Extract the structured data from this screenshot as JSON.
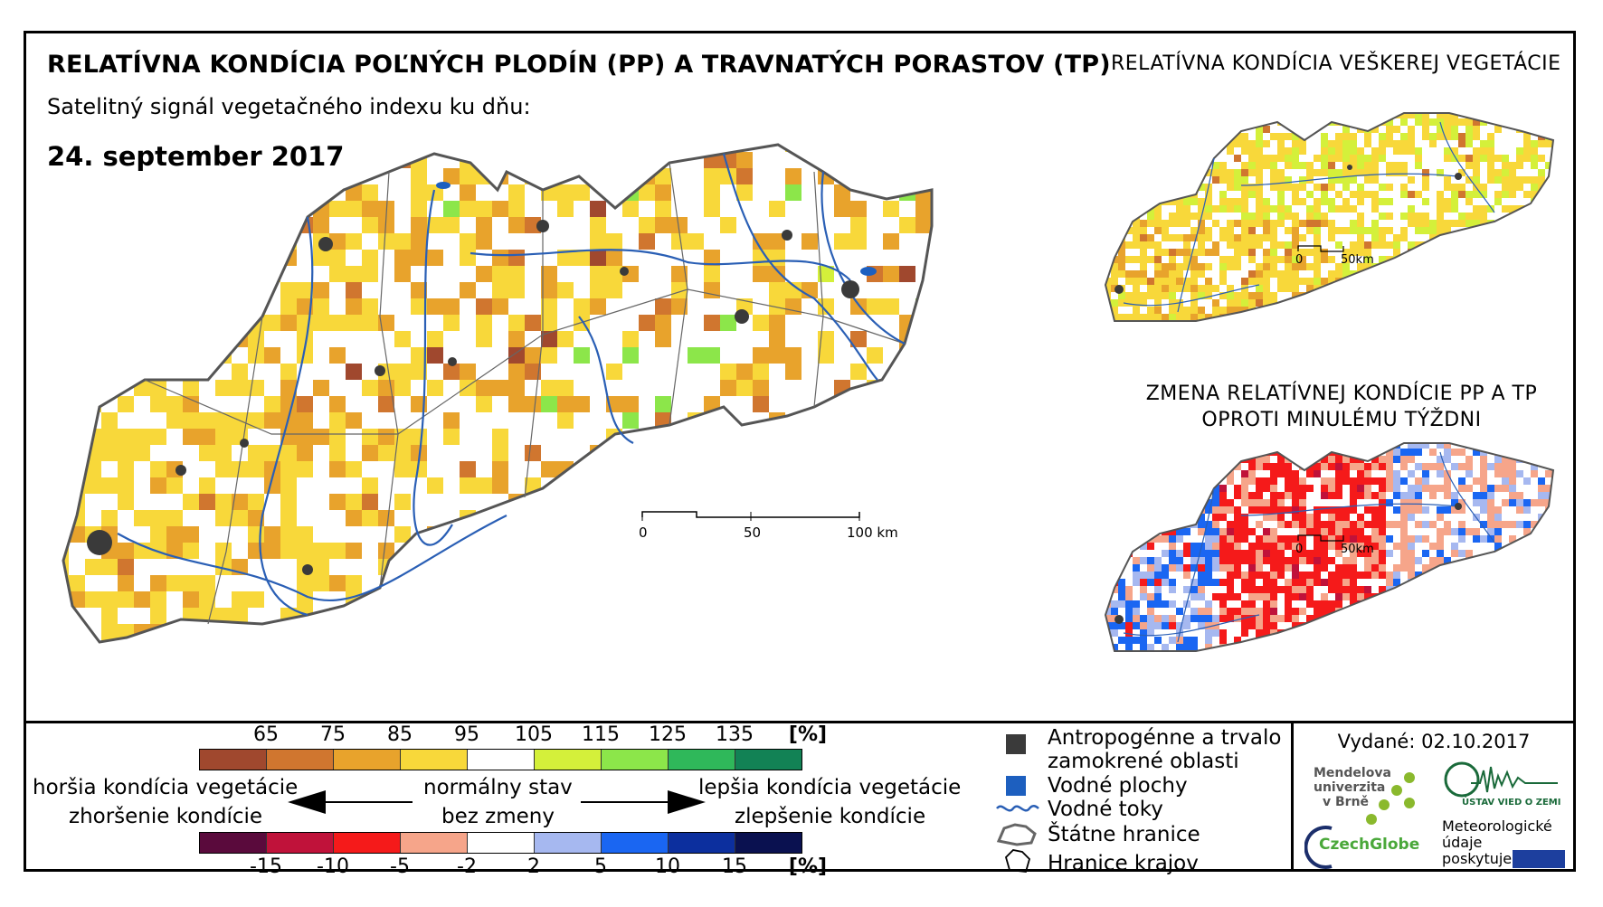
{
  "header": {
    "title": "RELATÍVNA KONDÍCIA POĽNÝCH PLODÍN (PP) A TRAVNATÝCH PORASTOV (TP)",
    "subtitle": "Satelitný signál vegetačného indexu ku dňu:",
    "date": "24. september 2017"
  },
  "panels": {
    "vegetation_title": "RELATÍVNA KONDÍCIA VEŠKEREJ VEGETÁCIE",
    "change_title_line1": "ZMENA RELATÍVNEJ KONDÍCIE PP A TP",
    "change_title_line2": "OPROTI MINULÉMU TÝŽDNI"
  },
  "scalebars": {
    "main": [
      "0",
      "50",
      "100 km"
    ],
    "small_zero": "0",
    "small_end": "50km"
  },
  "condition_scale": {
    "ticks": [
      "65",
      "75",
      "85",
      "95",
      "105",
      "115",
      "125",
      "135"
    ],
    "unit": "[%]",
    "colors": [
      "#a0482e",
      "#d0762f",
      "#e8a32c",
      "#f8d83a",
      "#ffffff",
      "#d4f03a",
      "#8ce64a",
      "#2fb85a",
      "#128255"
    ]
  },
  "change_scale": {
    "ticks": [
      "-15",
      "-10",
      "-5",
      "-2",
      "2",
      "5",
      "10",
      "15"
    ],
    "unit": "[%]",
    "colors": [
      "#5a0a3c",
      "#c0123a",
      "#f51a1a",
      "#f6a58a",
      "#ffffff",
      "#a6b8f0",
      "#1a66f2",
      "#0c2f9e",
      "#0a1150"
    ]
  },
  "descriptions": {
    "worse_line1": "horšia kondícia vegetácie",
    "worse_line2": "zhoršenie kondície",
    "normal_line1": "normálny stav",
    "normal_line2": "bez zmeny",
    "better_line1": "lepšia kondícia vegetácie",
    "better_line2": "zlepšenie kondície"
  },
  "legend": {
    "anthropogenic_line1": "Antropogénne a trvalo",
    "anthropogenic_line2": "zamokrené oblasti",
    "water_bodies": "Vodné plochy",
    "rivers": "Vodné toky",
    "state_border": "Štátne hranice",
    "region_border": "Hranice krajov"
  },
  "footer": {
    "issued": "Vydané: 02.10.2017",
    "mendel_line1": "Mendelova",
    "mendel_line2": "univerzita",
    "mendel_line3": "v Brně",
    "czechglobe": "CzechGlobe",
    "uvoz": "ÚSTAV VIED O ZEMI",
    "meteo_line1": "Meteorologické",
    "meteo_line2": "údaje",
    "meteo_line3": "poskytuje:"
  },
  "colors": {
    "anthropogenic": "#3a3a3a",
    "water": "#1d5fbf",
    "river": "#2a5fb5",
    "border": "#555555"
  }
}
